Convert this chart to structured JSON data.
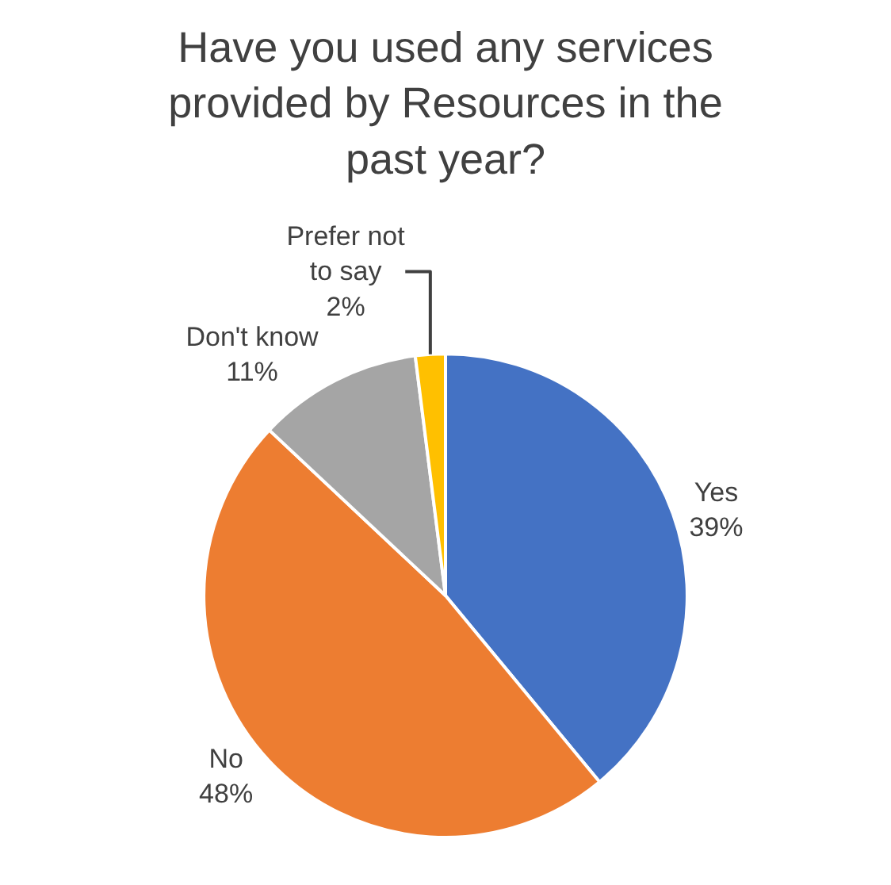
{
  "chart_data": {
    "type": "pie",
    "title": "Have you used any services provided by Resources in the past year?",
    "categories": [
      "Yes",
      "No",
      "Don't know",
      "Prefer not to say"
    ],
    "values": [
      39,
      48,
      11,
      2
    ],
    "value_labels": [
      "39%",
      "48%",
      "11%",
      "2%"
    ],
    "colors": [
      "#4472c4",
      "#ed7d31",
      "#a5a5a5",
      "#ffc000"
    ],
    "legend": false
  }
}
